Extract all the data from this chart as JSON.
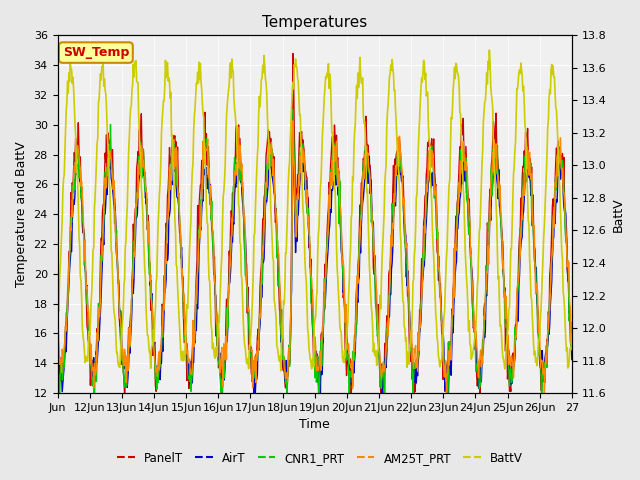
{
  "title": "Temperatures",
  "xlabel": "Time",
  "ylabel_left": "Temperature and BattV",
  "ylabel_right": "BattV",
  "ylim_left": [
    12,
    36
  ],
  "ylim_right": [
    11.6,
    13.8
  ],
  "bg_color": "#e8e8e8",
  "plot_bg_color": "#f0f0f0",
  "legend_items": [
    "PanelT",
    "AirT",
    "CNR1_PRT",
    "AM25T_PRT",
    "BattV"
  ],
  "legend_colors": [
    "#cc0000",
    "#0000cc",
    "#00cc00",
    "#ff8800",
    "#cccc00"
  ],
  "sw_temp_label": "SW_Temp",
  "sw_temp_color": "#cc0000",
  "sw_temp_bg": "#ffff99",
  "sw_temp_border": "#cc8800",
  "xtick_positions": [
    0,
    1,
    2,
    3,
    4,
    5,
    6,
    7,
    8,
    9,
    10,
    11,
    12,
    13,
    14,
    15,
    16
  ],
  "xtick_labels": [
    "Jun",
    "12Jun",
    "13Jun",
    "14Jun",
    "15Jun",
    "16Jun",
    "17Jun",
    "18Jun",
    "19Jun",
    "20Jun",
    "21Jun",
    "22Jun",
    "23Jun",
    "24Jun",
    "25Jun",
    "26Jun",
    "27"
  ],
  "n_days": 16,
  "pts_per_day": 48
}
